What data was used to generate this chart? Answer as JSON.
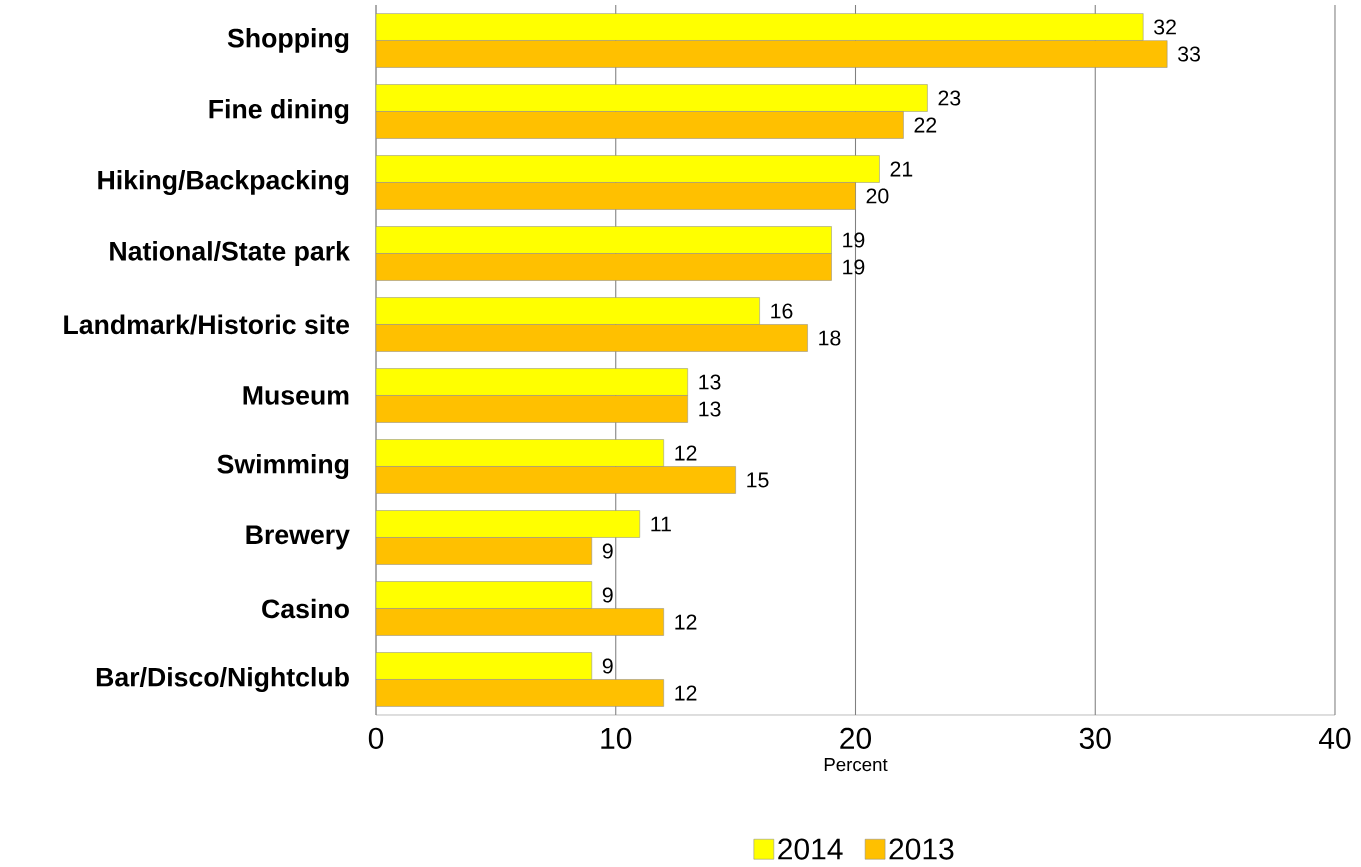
{
  "chart_data": {
    "type": "bar",
    "orientation": "horizontal",
    "xlabel": "Percent",
    "categories": [
      "Shopping",
      "Fine dining",
      "Hiking/Backpacking",
      "National/State park",
      "Landmark/Historic site",
      "Museum",
      "Swimming",
      "Brewery",
      "Casino",
      "Bar/Disco/Nightclub"
    ],
    "series": [
      {
        "name": "2014",
        "color": "#ffff00",
        "values": [
          32,
          23,
          21,
          19,
          16,
          13,
          12,
          11,
          9,
          9
        ]
      },
      {
        "name": "2013",
        "color": "#ffc000",
        "values": [
          33,
          22,
          20,
          19,
          18,
          13,
          15,
          9,
          12,
          12
        ]
      }
    ],
    "xlim": [
      0,
      40
    ],
    "xticks": [
      0,
      10,
      20,
      30,
      40
    ],
    "grid": "x",
    "legend": "bottom",
    "data_labels": true
  }
}
